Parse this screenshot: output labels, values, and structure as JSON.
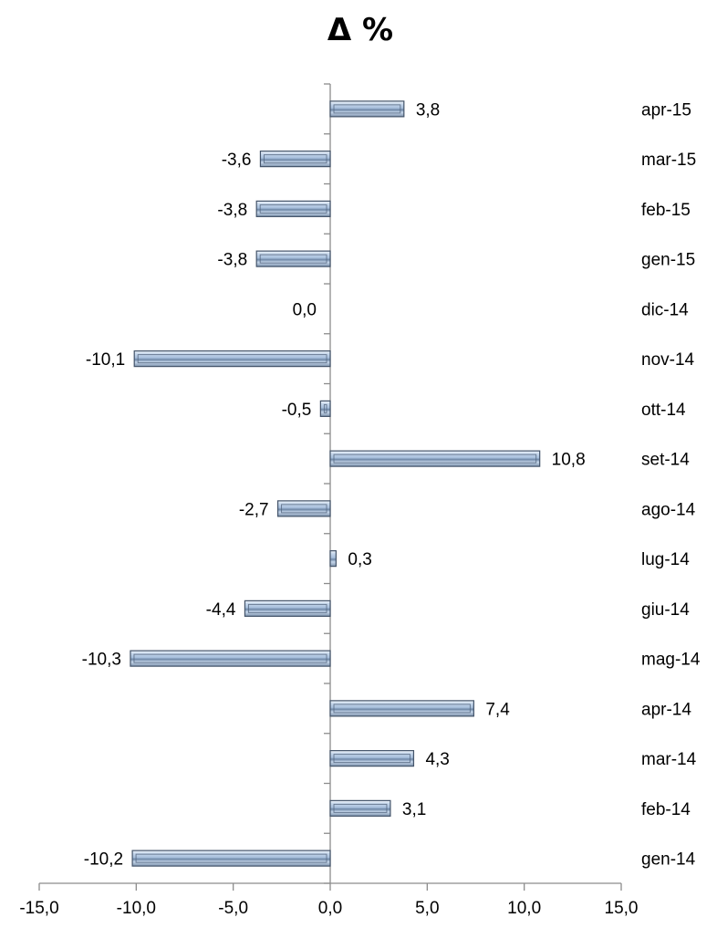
{
  "chart_data": {
    "type": "bar",
    "orientation": "horizontal",
    "title": "Δ %",
    "categories": [
      "gen-14",
      "feb-14",
      "mar-14",
      "apr-14",
      "mag-14",
      "giu-14",
      "lug-14",
      "ago-14",
      "set-14",
      "ott-14",
      "nov-14",
      "dic-14",
      "gen-15",
      "feb-15",
      "mar-15",
      "apr-15"
    ],
    "values": [
      -10.2,
      3.1,
      4.3,
      7.4,
      -10.3,
      -4.4,
      0.3,
      -2.7,
      10.8,
      -0.5,
      -10.1,
      0.0,
      -3.8,
      -3.8,
      -3.6,
      3.8
    ],
    "data_labels": [
      "-10,2",
      "3,1",
      "4,3",
      "7,4",
      "-10,3",
      "-4,4",
      "0,3",
      "-2,7",
      "10,8",
      "-0,5",
      "-10,1",
      "0,0",
      "-3,8",
      "-3,8",
      "-3,6",
      "3,8"
    ],
    "xlim": [
      -15,
      15
    ],
    "x_ticks": [
      -15,
      -10,
      -5,
      0,
      5,
      10,
      15
    ],
    "x_tick_labels": [
      "-15,0",
      "-10,0",
      "-5,0",
      "0,0",
      "5,0",
      "10,0",
      "15,0"
    ],
    "category_labels_position": "right",
    "grid": false,
    "legend": false,
    "colors": {
      "bar_fill": "#b9cde5",
      "bar_edge": "#44546a",
      "axis": "#8c8c8c"
    }
  }
}
